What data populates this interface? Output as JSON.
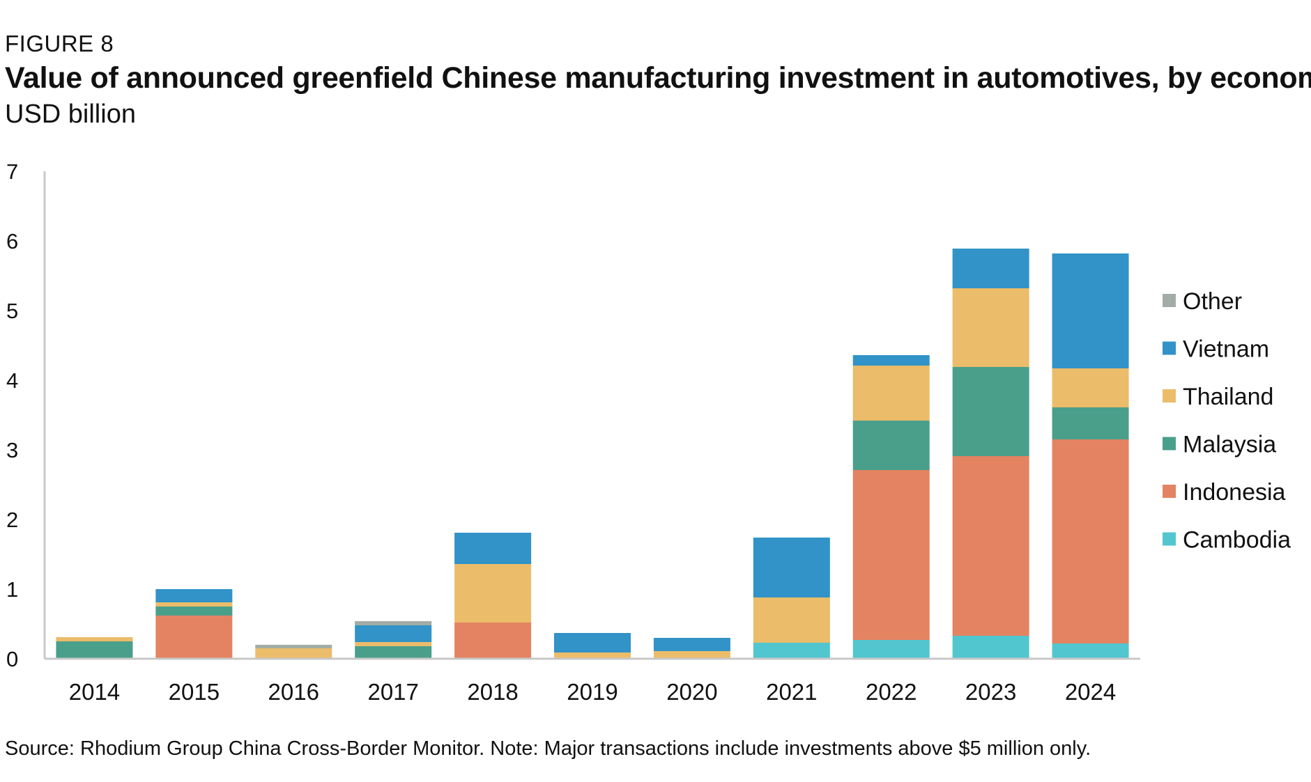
{
  "figure_label": "FIGURE 8",
  "title": "Value of announced greenfield Chinese manufacturing investment in automotives, by economy",
  "subtitle": "USD billion",
  "source": "Source: Rhodium Group China Cross-Border Monitor. Note: Major transactions include investments above $5 million only.",
  "chart_data": {
    "type": "bar",
    "stacked": true,
    "title": "Value of announced greenfield Chinese manufacturing investment in automotives, by economy",
    "subtitle": "USD billion",
    "xlabel": "",
    "ylabel": "",
    "ylim": [
      0,
      7
    ],
    "yticks": [
      0,
      1,
      2,
      3,
      4,
      5,
      6,
      7
    ],
    "grid": false,
    "legend_position": "right",
    "categories": [
      "2014",
      "2015",
      "2016",
      "2017",
      "2018",
      "2019",
      "2020",
      "2021",
      "2022",
      "2023",
      "2024"
    ],
    "series": [
      {
        "name": "Cambodia",
        "color": "#52C6CF",
        "values": [
          0,
          0,
          0,
          0,
          0,
          0,
          0,
          0.23,
          0.27,
          0.33,
          0.22
        ]
      },
      {
        "name": "Indonesia",
        "color": "#E48361",
        "values": [
          0,
          0.62,
          0,
          0,
          0.52,
          0,
          0,
          0,
          2.44,
          2.58,
          2.93
        ]
      },
      {
        "name": "Malaysia",
        "color": "#4A9F8A",
        "values": [
          0.25,
          0.13,
          0,
          0.18,
          0,
          0,
          0,
          0,
          0.71,
          1.28,
          0.46
        ]
      },
      {
        "name": "Thailand",
        "color": "#EBBC6A",
        "values": [
          0.06,
          0.06,
          0.15,
          0.06,
          0.84,
          0.09,
          0.11,
          0.65,
          0.79,
          1.13,
          0.56
        ]
      },
      {
        "name": "Vietnam",
        "color": "#3193C7",
        "values": [
          0,
          0.19,
          0,
          0.24,
          0.45,
          0.28,
          0.19,
          0.86,
          0.15,
          0.57,
          1.65
        ]
      },
      {
        "name": "Other",
        "color": "#A2ADA5",
        "values": [
          0,
          0,
          0.05,
          0.06,
          0,
          0,
          0,
          0,
          0,
          0,
          0
        ]
      }
    ]
  }
}
